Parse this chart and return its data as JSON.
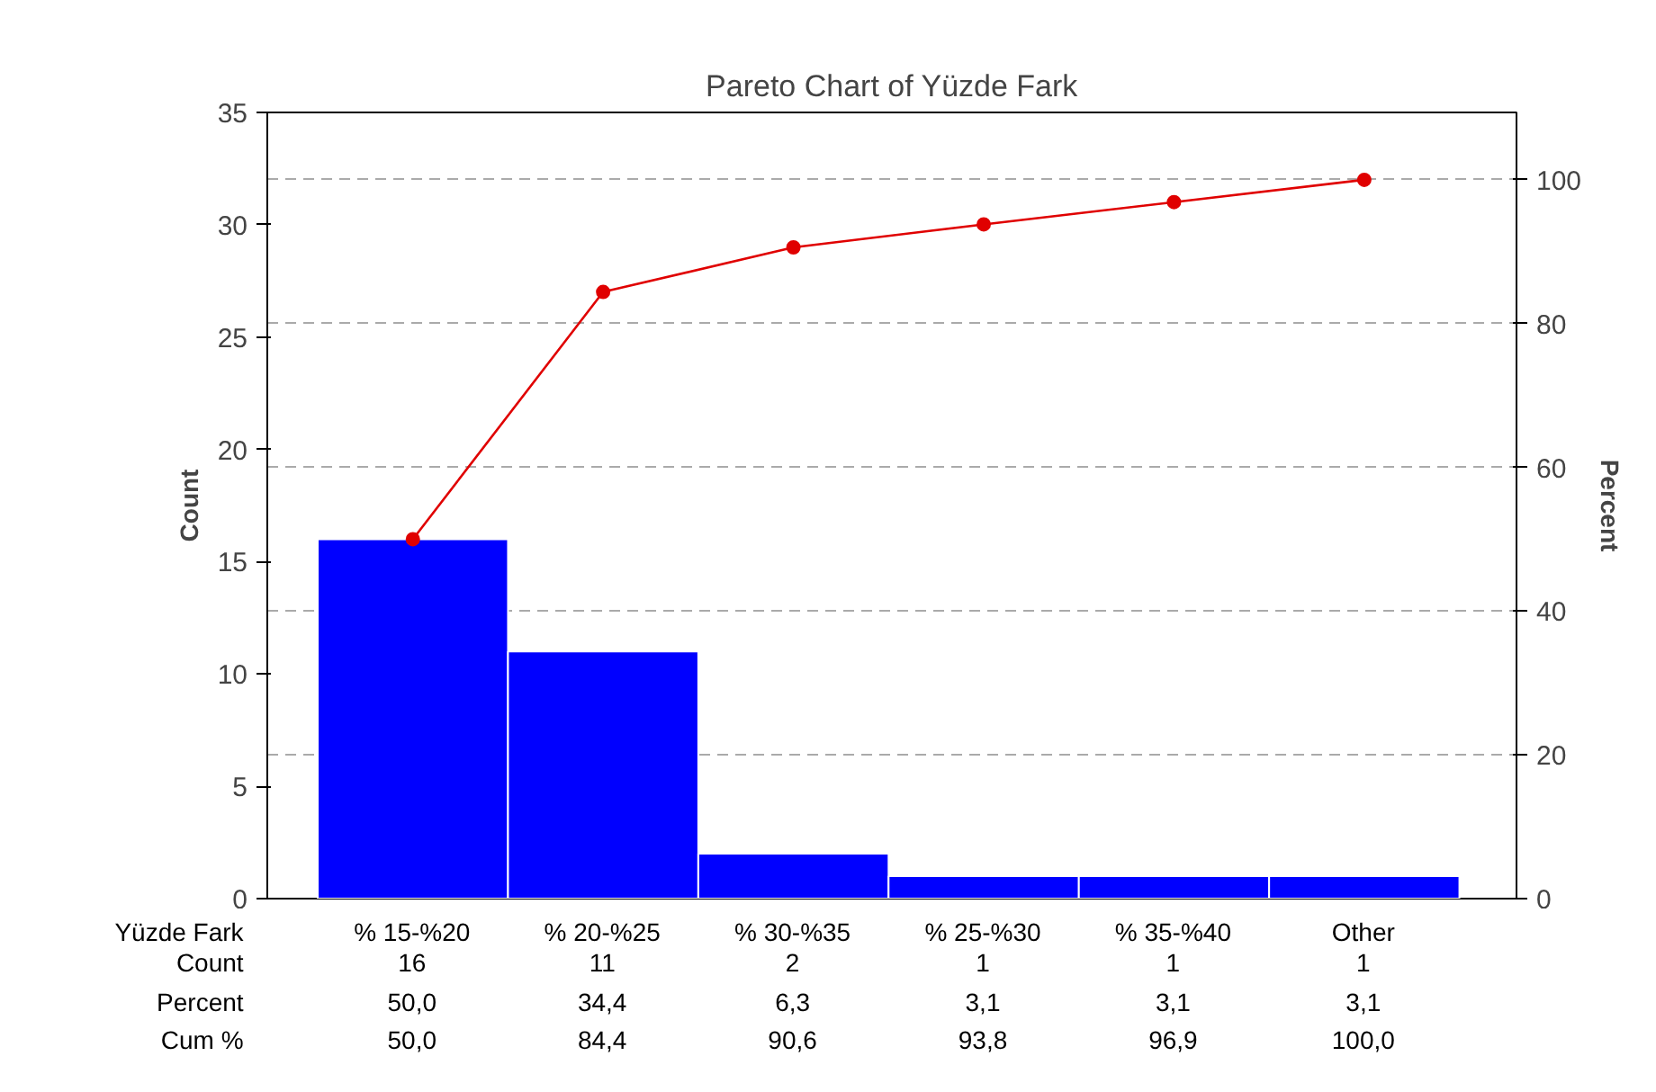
{
  "chart_data": {
    "type": "bar",
    "title": "Pareto Chart of Yüzde Fark",
    "xlabel": "Yüzde Fark",
    "ylabel": "Count",
    "y2label": "Percent",
    "categories": [
      "% 15-%20",
      "% 20-%25",
      "% 30-%35",
      "% 25-%30",
      "% 35-%40",
      "Other"
    ],
    "series": [
      {
        "color": "#0000ff",
        "values": [
          16,
          11,
          2,
          1,
          1,
          1
        ],
        "value_labels": [
          "16",
          "11",
          "2",
          "1",
          "1",
          "1"
        ]
      },
      {
        "type": "line",
        "axis": "y2",
        "color": "#e00000",
        "marker": "circle",
        "values": [
          50.0,
          84.4,
          90.6,
          93.8,
          96.9,
          100.0
        ],
        "value_labels": [
          "50,0",
          "84,4",
          "90,6",
          "93,8",
          "96,9",
          "100,0"
        ]
      }
    ],
    "annotations": [
      "Count",
      "Percent",
      "Cum %",
      "50,0",
      "34,4",
      "6,3",
      "3,1",
      "3,1",
      "3,1"
    ],
    "ylim": [
      0,
      35
    ],
    "yticks": [
      0,
      5,
      10,
      15,
      20,
      25,
      30,
      35
    ],
    "y2lim": [
      0,
      109.375
    ],
    "y2ticks": [
      0,
      20,
      40,
      60,
      80,
      100
    ],
    "grid": "y2"
  }
}
